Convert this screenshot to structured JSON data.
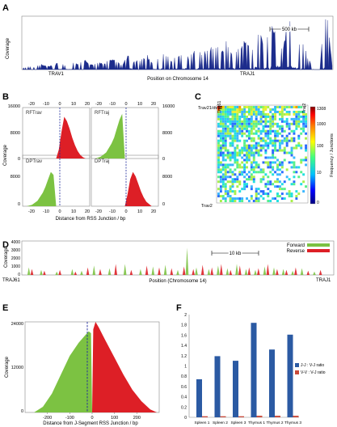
{
  "panel_letters": [
    "A",
    "B",
    "C",
    "D",
    "E",
    "F"
  ],
  "chart_data": [
    {
      "panel": "A",
      "type": "area",
      "xlabel": "Position on Chromosome 14",
      "ylabel": "Coverage",
      "scale_bar": "500 kb",
      "region_labels": [
        "TRAV1",
        "TRAJ1"
      ],
      "color": "#1c2c8c",
      "x": [
        0,
        2,
        4,
        6,
        8,
        10,
        12,
        14,
        16,
        18,
        20,
        22,
        24,
        26,
        28,
        30,
        32,
        34,
        36,
        38,
        40,
        42,
        44,
        46,
        48,
        50,
        52,
        54,
        56,
        58,
        60,
        62,
        64,
        66,
        68,
        70,
        72,
        74,
        76,
        78,
        80,
        82,
        84,
        86,
        88,
        90,
        92,
        94,
        96,
        98,
        100
      ],
      "y": [
        0.02,
        0.05,
        0.03,
        0.08,
        0.04,
        0.06,
        0.1,
        0.05,
        0.12,
        0.07,
        0.15,
        0.06,
        0.1,
        0.08,
        0.14,
        0.12,
        0.06,
        0.18,
        0.1,
        0.13,
        0.2,
        0.08,
        0.15,
        0.22,
        0.12,
        0.18,
        0.25,
        0.15,
        0.3,
        0.2,
        0.28,
        0.35,
        0.22,
        0.4,
        0.18,
        0.3,
        0.45,
        0.28,
        0.55,
        0.3,
        0.5,
        0.65,
        0.3,
        0.72,
        0.35,
        0.4,
        0.2,
        0.0,
        0.0,
        1.0,
        0.05
      ]
    },
    {
      "panel": "B",
      "type": "area",
      "xlabel": "Distance from RSS Junction / bp",
      "ylabel": "Coverage",
      "x_ticks": [
        "-20",
        "-10",
        "0",
        "10",
        "20"
      ],
      "y_ticks_left": [
        "0",
        "8000",
        "16000"
      ],
      "y_ticks_right": [
        "0",
        "8000",
        "16000"
      ],
      "xlim": [
        -25,
        25
      ],
      "ylim": [
        0,
        16000
      ],
      "subplots": [
        {
          "name": "RFTrav",
          "color": "#dd1f26",
          "x": [
            0,
            2,
            4,
            6,
            8,
            10,
            12,
            14,
            16,
            18,
            20,
            22
          ],
          "y": [
            0,
            3000,
            9000,
            14000,
            12500,
            10000,
            7000,
            4500,
            2500,
            1200,
            400,
            0
          ]
        },
        {
          "name": "RFTraj",
          "color": "#7cc242",
          "x": [
            -22,
            -18,
            -14,
            -10,
            -8,
            -6,
            -4,
            -2,
            0
          ],
          "y": [
            0,
            600,
            2000,
            5000,
            7000,
            10000,
            13000,
            15000,
            0
          ]
        },
        {
          "name": "DPTrav",
          "color": "#7cc242",
          "x": [
            -22,
            -18,
            -14,
            -10,
            -8,
            -6,
            -4,
            -2,
            0
          ],
          "y": [
            0,
            500,
            1800,
            4500,
            6500,
            9000,
            11500,
            10500,
            0
          ]
        },
        {
          "name": "DPTraj",
          "color": "#dd1f26",
          "x": [
            0,
            2,
            4,
            6,
            8,
            10,
            12,
            14,
            16,
            20
          ],
          "y": [
            0,
            4000,
            9000,
            11500,
            10000,
            7500,
            5000,
            3000,
            1500,
            0
          ]
        }
      ]
    },
    {
      "panel": "C",
      "type": "heatmap",
      "row_labels": [
        "Trav21/dv12",
        "Trav2"
      ],
      "col_labels": [
        "Traj61",
        "Traj2"
      ],
      "colorbar_label": "Frequency / Junctions",
      "colorbar_ticks": [
        "1308",
        "1000",
        "100",
        "10",
        "0"
      ],
      "colorbar_colors": [
        "#00007f",
        "#0000ff",
        "#00bfff",
        "#40ff80",
        "#ffff00",
        "#ff7f00",
        "#ff0000",
        "#7f0000"
      ]
    },
    {
      "panel": "D",
      "type": "area",
      "xlabel": "Position (Chromosome 14)",
      "ylabel": "Coverage",
      "y_ticks": [
        "0",
        "1000",
        "2000",
        "3000",
        "4000"
      ],
      "ylim": [
        0,
        4000
      ],
      "scale_bar": "10 kb",
      "region_labels": [
        "TRAJ61",
        "TRAJ1"
      ],
      "series": [
        {
          "name": "Forward",
          "color": "#7cc242",
          "x": [
            2,
            6,
            11,
            16,
            19,
            23,
            28,
            33,
            38,
            42,
            46,
            50,
            53,
            56,
            60,
            63,
            66,
            69,
            72,
            75,
            78,
            81,
            84,
            87,
            90,
            94
          ],
          "y": [
            900,
            600,
            400,
            700,
            500,
            1100,
            800,
            1300,
            700,
            1000,
            1200,
            600,
            3200,
            900,
            700,
            1100,
            800,
            1300,
            700,
            600,
            1000,
            900,
            700,
            500,
            800,
            400
          ]
        },
        {
          "name": "Reverse",
          "color": "#dd1f26",
          "x": [
            3,
            7,
            12,
            17,
            21,
            25,
            30,
            35,
            40,
            44,
            48,
            52,
            55,
            58,
            61,
            64,
            67,
            70,
            73,
            76,
            79,
            82,
            85,
            88,
            92,
            96
          ],
          "y": [
            700,
            500,
            600,
            400,
            900,
            700,
            1300,
            600,
            1100,
            900,
            800,
            1000,
            700,
            1200,
            900,
            1300,
            600,
            1100,
            900,
            800,
            1300,
            700,
            600,
            900,
            500,
            600
          ]
        }
      ]
    },
    {
      "panel": "E",
      "type": "area",
      "xlabel": "Distance from J-Segment RSS Junction / bp",
      "ylabel": "Coverage",
      "x_ticks": [
        "-200",
        "-100",
        "0",
        "100",
        "200"
      ],
      "y_ticks": [
        "0",
        "12000",
        "24000"
      ],
      "xlim": [
        -300,
        300
      ],
      "ylim": [
        0,
        24000
      ],
      "series": [
        {
          "name": "left",
          "color": "#7cc242",
          "x": [
            -260,
            -220,
            -180,
            -140,
            -100,
            -60,
            -30,
            -15,
            -5,
            0
          ],
          "y": [
            0,
            1500,
            5000,
            10000,
            15000,
            18500,
            20500,
            21500,
            21000,
            0
          ]
        },
        {
          "name": "right",
          "color": "#dd1f26",
          "x": [
            0,
            5,
            15,
            30,
            60,
            100,
            140,
            180,
            220,
            260,
            290
          ],
          "y": [
            0,
            22000,
            24000,
            22500,
            19000,
            14500,
            10000,
            6000,
            3000,
            800,
            0
          ]
        }
      ]
    },
    {
      "panel": "F",
      "type": "bar",
      "categories": [
        "Spleen 1",
        "Spleen 2",
        "Spleen 3",
        "Thymus 1",
        "Thymus 2",
        "Thymus 3"
      ],
      "y_ticks": [
        "0",
        "0.2",
        "0.4",
        "0.6",
        "0.8",
        "1",
        "1.2",
        "1.4",
        "1.6",
        "1.8",
        "2"
      ],
      "ylim": [
        0,
        2
      ],
      "legend_position": "right",
      "series": [
        {
          "name": "J-J : V-J ratio",
          "color": "#2b5aa3",
          "values": [
            0.74,
            1.19,
            1.1,
            1.84,
            1.32,
            1.61
          ]
        },
        {
          "name": "V-V : V-J ratio",
          "color": "#c94a3a",
          "values": [
            0.02,
            0.02,
            0.02,
            0.03,
            0.03,
            0.03
          ]
        }
      ]
    }
  ]
}
